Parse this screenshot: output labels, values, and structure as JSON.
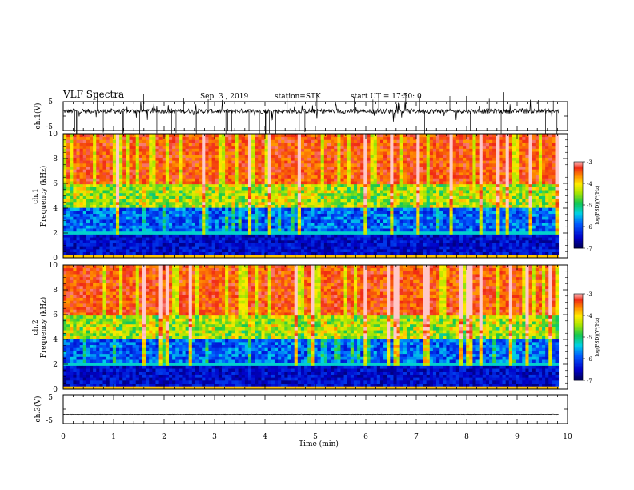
{
  "header": {
    "title": "VLF Spectra",
    "date": "Sep. 3 , 2019",
    "station": "station=STK",
    "start": "start UT = 17:50: 0"
  },
  "chart_data": [
    {
      "type": "line",
      "panel": "ch1-waveform",
      "ylabel": "ch.1(V)",
      "ylim": [
        -5,
        5
      ],
      "yticks": [
        "5",
        "-5"
      ],
      "xlim": [
        0,
        10
      ],
      "baseline": 1.7,
      "color": "#000000"
    },
    {
      "type": "heatmap",
      "panel": "ch1-spectrogram",
      "ylabel": "ch.1\nFrequency (kHz)",
      "ylim": [
        0,
        10
      ],
      "yticks": [
        "0",
        "2",
        "4",
        "6",
        "8",
        "10"
      ],
      "xlim": [
        0,
        9.82
      ],
      "colorbar": {
        "label": "log(PSD)(V²/Hz)",
        "range": [
          -7,
          -3
        ],
        "ticks": [
          "-3",
          "-4",
          "-5",
          "-6",
          "-7"
        ]
      }
    },
    {
      "type": "heatmap",
      "panel": "ch2-spectrogram",
      "ylabel": "ch.2\nFrequency (kHz)",
      "ylim": [
        0,
        10
      ],
      "yticks": [
        "0",
        "2",
        "4",
        "6",
        "8",
        "10"
      ],
      "xlim": [
        0,
        9.82
      ],
      "colorbar": {
        "label": "log(PSD)(V²/Hz)",
        "range": [
          -7,
          -3
        ],
        "ticks": [
          "-3",
          "-4",
          "-5",
          "-6",
          "-7"
        ]
      }
    },
    {
      "type": "line",
      "panel": "ch3-waveform",
      "ylabel": "ch.3(V)",
      "ylim": [
        -5,
        5
      ],
      "yticks": [
        "5",
        "-5"
      ],
      "xlim": [
        0,
        10
      ],
      "baseline": -1.8,
      "color": "#000000"
    }
  ],
  "xaxis": {
    "label": "Time (min)",
    "range": [
      0,
      10
    ],
    "ticks": [
      "0",
      "1",
      "2",
      "3",
      "4",
      "5",
      "6",
      "7",
      "8",
      "9",
      "10"
    ]
  }
}
